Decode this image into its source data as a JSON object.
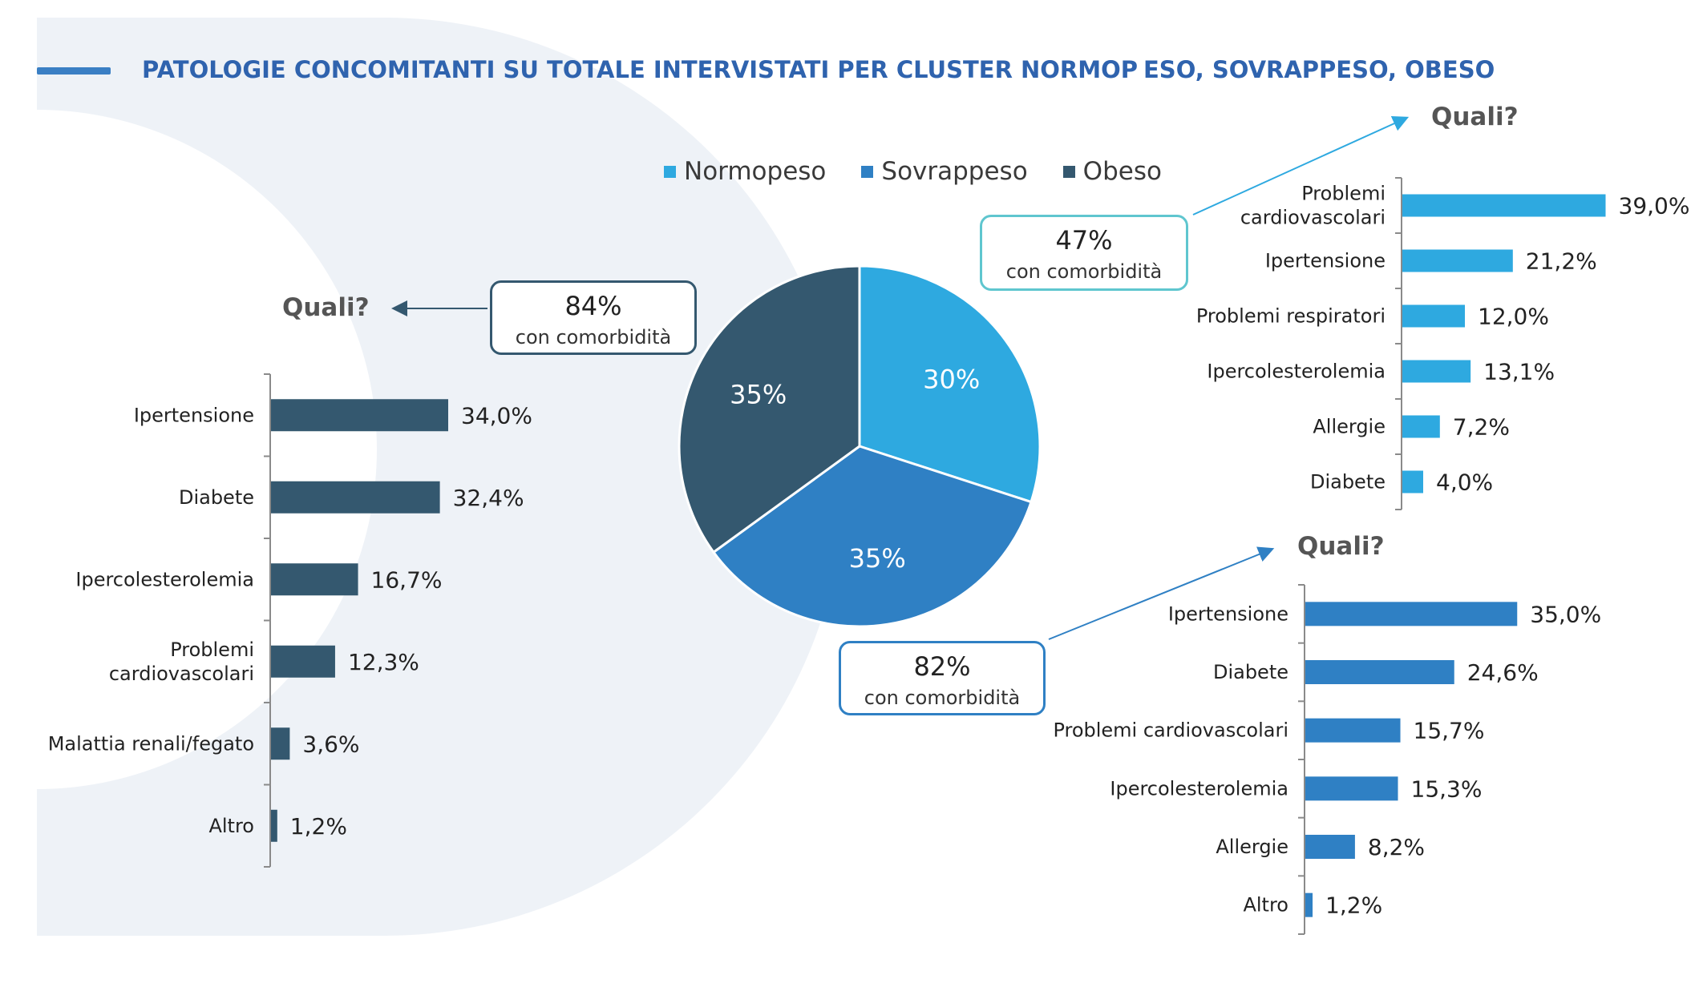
{
  "title_left": "PATOLOGIE CONCOMITANTI SU TOTALE INTERVISTATI PER CLUSTER NORMOP",
  "title_right": "ESO, SOVRAPPESO, OBESO",
  "colors": {
    "normopeso": "#2ea9e0",
    "sovrappeso": "#2f80c4",
    "obeso": "#34586f",
    "title": "#2f63ae",
    "bg_arc": "#eef2f7"
  },
  "legend": [
    {
      "label": "Normopeso",
      "color": "#2ea9e0"
    },
    {
      "label": "Sovrappeso",
      "color": "#2f80c4"
    },
    {
      "label": "Obeso",
      "color": "#34586f"
    }
  ],
  "callouts": {
    "obeso": {
      "pct": "84%",
      "sub": "con comorbidità"
    },
    "normopeso": {
      "pct": "47%",
      "sub": "con comorbidità"
    },
    "sovrappeso": {
      "pct": "82%",
      "sub": "con comorbidità"
    }
  },
  "quali_label": "Quali?",
  "chart_data": [
    {
      "type": "pie",
      "categories": [
        "Normopeso",
        "Sovrappeso",
        "Obeso"
      ],
      "values": [
        30,
        35,
        35
      ],
      "labels": [
        "30%",
        "35%",
        "35%"
      ]
    },
    {
      "type": "bar",
      "orientation": "horizontal",
      "series_name": "Obeso",
      "categories": [
        "Ipertensione",
        "Diabete",
        "Ipercolesterolemia",
        "Problemi cardiovascolari",
        "Malattia renali/fegato",
        "Altro"
      ],
      "values": [
        34.0,
        32.4,
        16.7,
        12.3,
        3.6,
        1.2
      ],
      "labels": [
        "34,0%",
        "32,4%",
        "16,7%",
        "12,3%",
        "3,6%",
        "1,2%"
      ]
    },
    {
      "type": "bar",
      "orientation": "horizontal",
      "series_name": "Normopeso",
      "categories": [
        "Problemi cardiovascolari",
        "Ipertensione",
        "Problemi respiratori",
        "Ipercolesterolemia",
        "Allergie",
        "Diabete"
      ],
      "values": [
        39.0,
        21.2,
        12.0,
        13.1,
        7.2,
        4.0
      ],
      "labels": [
        "39,0%",
        "21,2%",
        "12,0%",
        "13,1%",
        "7,2%",
        "4,0%"
      ]
    },
    {
      "type": "bar",
      "orientation": "horizontal",
      "series_name": "Sovrappeso",
      "categories": [
        "Ipertensione",
        "Diabete",
        "Problemi cardiovascolari",
        "Ipercolesterolemia",
        "Allergie",
        "Altro"
      ],
      "values": [
        35.0,
        24.6,
        15.7,
        15.3,
        8.2,
        1.2
      ],
      "labels": [
        "35,0%",
        "24,6%",
        "15,7%",
        "15,3%",
        "8,2%",
        "1,2%"
      ]
    }
  ]
}
